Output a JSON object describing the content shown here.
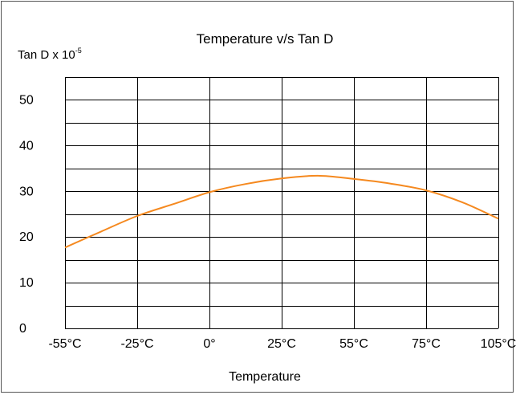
{
  "chart_data": {
    "type": "line",
    "title": "Temperature v/s Tan D",
    "ylabel": {
      "base": "Tan D x 10",
      "exponent": "-5"
    },
    "xlabel": "Temperature",
    "x_categories": [
      "-55°C",
      "-25°C",
      "0°",
      "25°C",
      "55°C",
      "75°C",
      "105°C"
    ],
    "y_ticks": [
      "0",
      "10",
      "20",
      "30",
      "40",
      "50"
    ],
    "ylim": [
      0,
      55
    ],
    "grid": true,
    "series": [
      {
        "color": "#f5891f",
        "points": [
          {
            "x": -55,
            "y": 17.7
          },
          {
            "x": -40,
            "y": 21.2
          },
          {
            "x": -25,
            "y": 24.6
          },
          {
            "x": -12.5,
            "y": 27.2
          },
          {
            "x": 0,
            "y": 29.8
          },
          {
            "x": 12.5,
            "y": 31.6
          },
          {
            "x": 25,
            "y": 32.8
          },
          {
            "x": 40,
            "y": 33.4
          },
          {
            "x": 55,
            "y": 32.7
          },
          {
            "x": 65,
            "y": 31.7
          },
          {
            "x": 75,
            "y": 30.2
          },
          {
            "x": 90,
            "y": 27.6
          },
          {
            "x": 105,
            "y": 24.0
          }
        ]
      }
    ]
  }
}
